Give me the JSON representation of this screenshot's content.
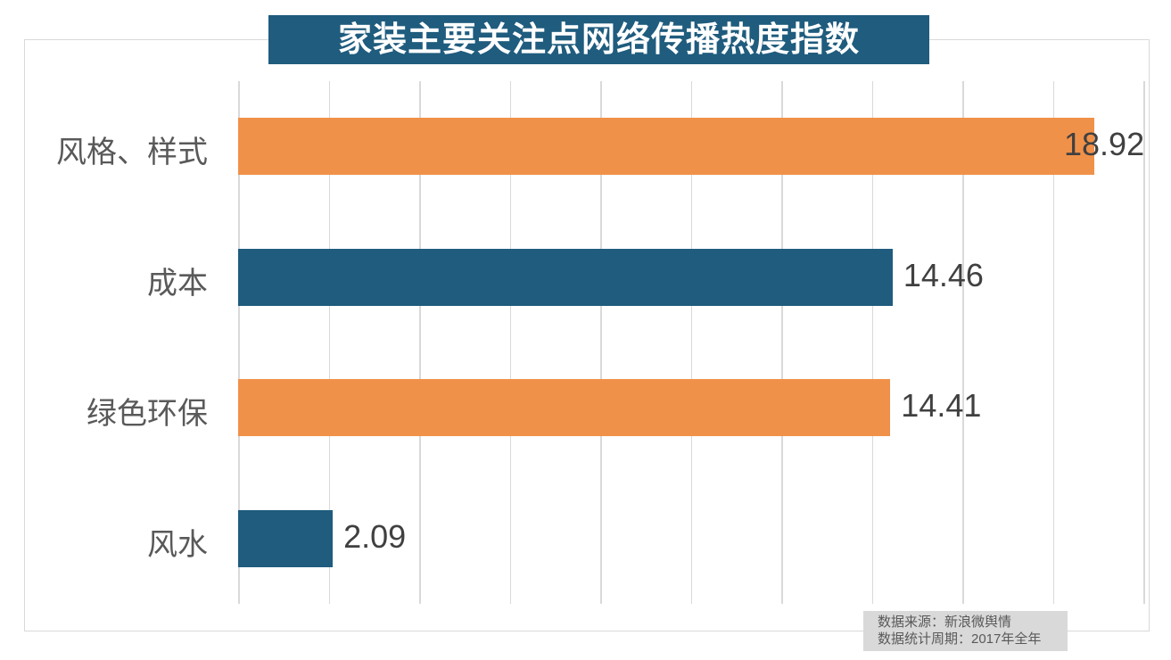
{
  "title": {
    "text": "家装主要关注点网络传播热度指数",
    "bg_color": "#1f5c7e",
    "text_color": "#ffffff"
  },
  "chart_data": {
    "type": "bar",
    "orientation": "horizontal",
    "title": "家装主要关注点网络传播热度指数",
    "categories": [
      "风格、样式",
      "成本",
      "绿色环保",
      "风水"
    ],
    "values": [
      18.92,
      14.46,
      14.41,
      2.09
    ],
    "value_labels": [
      "18.92",
      "14.46",
      "14.41",
      "2.09"
    ],
    "bar_colors": [
      "#f0914a",
      "#1f5c7e",
      "#f0914a",
      "#1f5c7e"
    ],
    "xlim": [
      0,
      20
    ],
    "gridline_interval": 2,
    "grid": true,
    "legend": "none",
    "xlabel": "",
    "ylabel": ""
  },
  "footer": {
    "lines": [
      "数据来源：新浪微舆情",
      "数据统计周期：2017年全年"
    ],
    "bg_color": "#d9d9d9",
    "text_color": "#595959"
  },
  "colors": {
    "gridline": "#d9d9d9",
    "chart_border": "#d9d9d9",
    "category_text": "#595959",
    "value_text": "#404040",
    "background": "#ffffff"
  }
}
